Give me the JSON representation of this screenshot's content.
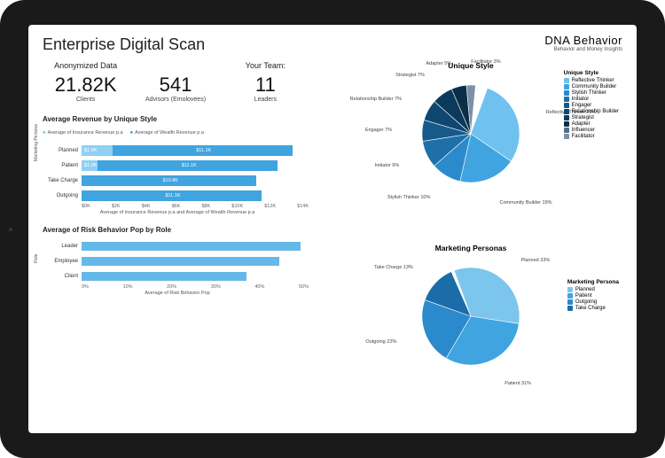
{
  "brand": {
    "logo": "DNA Behavior",
    "tagline": "Behavior and Money Insights"
  },
  "title": "Enterprise Digital Scan",
  "kpi": {
    "anon_head": "Anonymized Data",
    "team_head": "Your Team:",
    "clients": {
      "value": "21.82K",
      "label": "Clients"
    },
    "advisors": {
      "value": "541",
      "label": "Advisors (Emolovees)"
    },
    "leaders": {
      "value": "11",
      "label": "Leaders"
    }
  },
  "rev_chart": {
    "title": "Average Revenue by Unique Style",
    "legend": {
      "ins": "Average of Insurance Revenue p.a",
      "wlt": "Average of Wealth Revenue p.a"
    },
    "ylabel": "Marketing Persona",
    "xlabel": "Average of Insurance Revenue p.a and Average of Wealth Revenue p.a",
    "xmax": 14,
    "xticks": [
      "$0K",
      "$2K",
      "$4K",
      "$6K",
      "$8K",
      "$10K",
      "$12K",
      "$14K"
    ],
    "colors": {
      "ins": "#8fd0f4",
      "wlt": "#3fa4e0"
    },
    "rows": [
      {
        "label": "Planned",
        "ins": 1.9,
        "ins_txt": "$1.9K",
        "wlt": 11.1,
        "wlt_txt": "$11.1K"
      },
      {
        "label": "Patient",
        "ins": 1.0,
        "ins_txt": "$1.0K",
        "wlt": 11.1,
        "wlt_txt": "$11.1K"
      },
      {
        "label": "Take Charge",
        "ins": 0,
        "ins_txt": "",
        "wlt": 10.8,
        "wlt_txt": "$10.8K"
      },
      {
        "label": "Outgoing",
        "ins": 0,
        "ins_txt": "",
        "wlt": 11.1,
        "wlt_txt": "$11.1K"
      }
    ]
  },
  "risk_chart": {
    "title": "Average of Risk Behavior Pop by Role",
    "ylabel": "Role",
    "xlabel": "Average of Risk Behavior Pop",
    "xmax": 55,
    "xticks": [
      "0%",
      "10%",
      "20%",
      "30%",
      "40%",
      "50%"
    ],
    "color": "#66b8e8",
    "rows": [
      {
        "label": "Leader",
        "val": 53,
        "txt": "53%"
      },
      {
        "label": "Employee",
        "val": 48,
        "txt": "48%"
      },
      {
        "label": "Client",
        "val": 40,
        "txt": "40%"
      }
    ]
  },
  "unique_pie": {
    "title": "Unique Style",
    "legend_title": "Unique Style",
    "slices": [
      {
        "label": "Reflective Thinker",
        "pct": 29,
        "color": "#6fc2f0"
      },
      {
        "label": "Community Builder",
        "pct": 19,
        "color": "#3fa4e0"
      },
      {
        "label": "Stylish Thinker",
        "pct": 10,
        "color": "#2a8acb"
      },
      {
        "label": "Initiator",
        "pct": 9,
        "color": "#1f6fa8"
      },
      {
        "label": "Engager",
        "pct": 7,
        "color": "#155a8a"
      },
      {
        "label": "Relationship Builder",
        "pct": 7,
        "color": "#0f4770"
      },
      {
        "label": "Strategist",
        "pct": 7,
        "color": "#0b3a5c"
      },
      {
        "label": "Adapter",
        "pct": 5,
        "color": "#0a2e47"
      },
      {
        "label": "Influencer",
        "pct": 0,
        "color": "#546b8a"
      },
      {
        "label": "Facilitator",
        "pct": 3,
        "color": "#7a8fa8"
      }
    ]
  },
  "persona_pie": {
    "title": "Marketing Personas",
    "legend_title": "Marketing Persona",
    "slices": [
      {
        "label": "Planned",
        "pct": 33,
        "color": "#7cc5ed"
      },
      {
        "label": "Patient",
        "pct": 31,
        "color": "#3fa4e0"
      },
      {
        "label": "Outgoing",
        "pct": 22,
        "color": "#2a8acb"
      },
      {
        "label": "Take Charge",
        "pct": 13,
        "color": "#1a6da8"
      }
    ]
  }
}
